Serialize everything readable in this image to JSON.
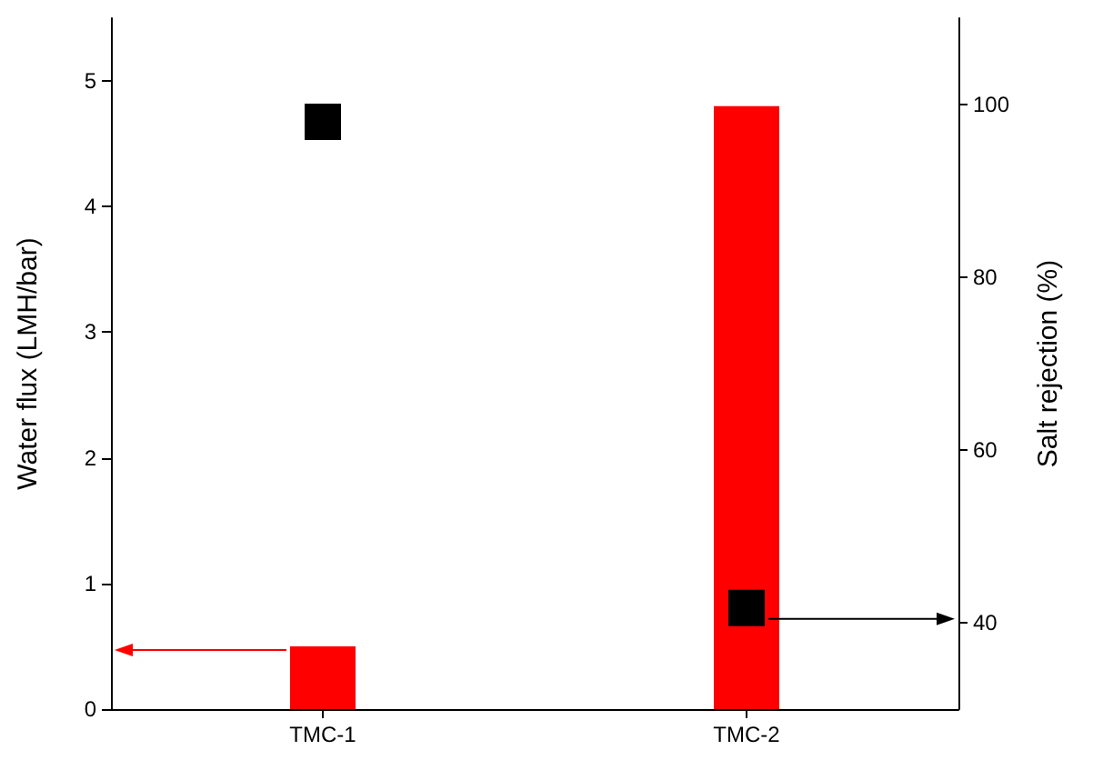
{
  "chart_data": {
    "type": "bar",
    "categories": [
      "TMC-1",
      "TMC-2"
    ],
    "ylabel": "Water flux (LMH/bar)",
    "y2label": "Salt rejection (%)",
    "ylim": [
      0,
      5.5
    ],
    "yticks": [
      0,
      1,
      2,
      3,
      4,
      5
    ],
    "y2lim": [
      30,
      110
    ],
    "y2ticks": [
      40,
      60,
      80,
      100
    ],
    "series": [
      {
        "color": "#ff0000",
        "values": [
          0.5,
          4.8
        ]
      },
      {
        "type": "scatter",
        "axis": "y2",
        "color": "#000000",
        "marker": "square",
        "values": [
          98,
          41.7
        ]
      }
    ],
    "grid": false
  }
}
